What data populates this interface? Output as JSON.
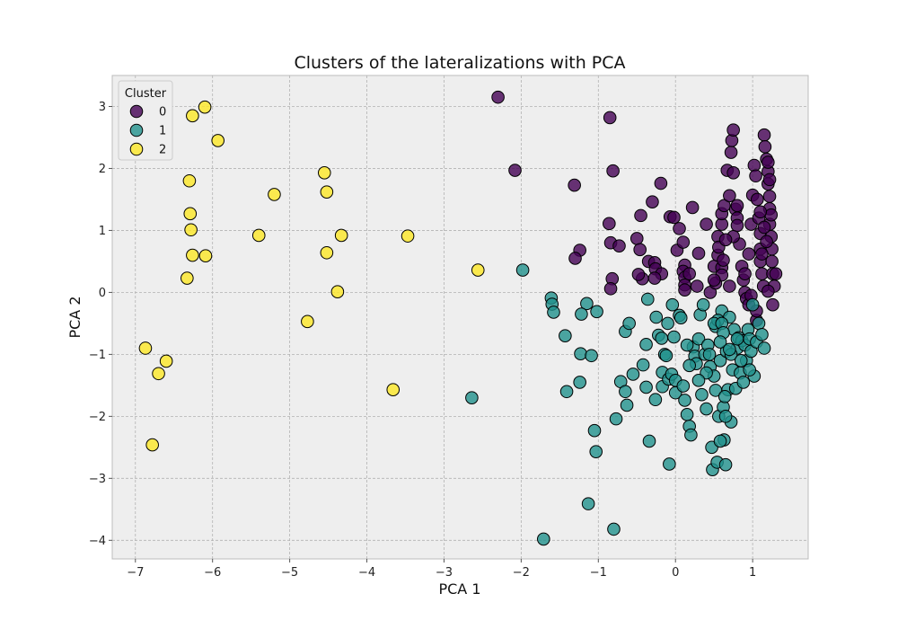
{
  "chart_data": {
    "type": "scatter",
    "title": "Clusters of the lateralizations with PCA",
    "xlabel": "PCA 1",
    "ylabel": "PCA 2",
    "xlim": [
      -7.3,
      1.72
    ],
    "ylim": [
      -4.3,
      3.5
    ],
    "xticks": [
      -7,
      -6,
      -5,
      -4,
      -3,
      -2,
      -1,
      0,
      1
    ],
    "yticks": [
      -4,
      -3,
      -2,
      -1,
      0,
      1,
      2,
      3
    ],
    "grid": true,
    "legend_title": "Cluster",
    "legend_position": "upper-left",
    "series": [
      {
        "name": "0",
        "color": "#440154",
        "points": [
          [
            -2.3,
            3.15
          ],
          [
            -0.85,
            2.82
          ],
          [
            -2.08,
            1.97
          ],
          [
            -0.81,
            1.96
          ],
          [
            -1.31,
            1.73
          ],
          [
            -0.19,
            1.76
          ],
          [
            -0.3,
            1.46
          ],
          [
            -0.45,
            1.24
          ],
          [
            -0.07,
            1.22
          ],
          [
            -0.02,
            1.21
          ],
          [
            0.05,
            1.03
          ],
          [
            0.22,
            1.37
          ],
          [
            0.4,
            1.1
          ],
          [
            -0.86,
            1.11
          ],
          [
            -0.84,
            0.8
          ],
          [
            -0.73,
            0.75
          ],
          [
            -0.5,
            0.87
          ],
          [
            -1.24,
            0.68
          ],
          [
            -1.3,
            0.55
          ],
          [
            -0.82,
            0.22
          ],
          [
            -0.84,
            0.06
          ],
          [
            -0.46,
            0.69
          ],
          [
            -0.35,
            0.5
          ],
          [
            -0.27,
            0.48
          ],
          [
            -0.26,
            0.38
          ],
          [
            -0.18,
            0.3
          ],
          [
            -0.43,
            0.22
          ],
          [
            -0.27,
            0.23
          ],
          [
            -0.48,
            0.29
          ],
          [
            0.02,
            0.68
          ],
          [
            0.1,
            0.81
          ],
          [
            0.12,
            0.44
          ],
          [
            0.1,
            0.34
          ],
          [
            0.12,
            0.24
          ],
          [
            0.12,
            0.12
          ],
          [
            0.12,
            0.04
          ],
          [
            0.18,
            0.3
          ],
          [
            0.3,
            0.63
          ],
          [
            0.28,
            0.1
          ],
          [
            0.45,
            0.0
          ],
          [
            0.5,
            0.42
          ],
          [
            0.52,
            0.15
          ],
          [
            0.55,
            0.6
          ],
          [
            0.55,
            0.9
          ],
          [
            0.56,
            0.73
          ],
          [
            0.6,
            0.4
          ],
          [
            0.62,
            0.52
          ],
          [
            0.6,
            0.28
          ],
          [
            0.6,
            1.1
          ],
          [
            0.6,
            1.27
          ],
          [
            0.63,
            1.4
          ],
          [
            0.67,
            1.97
          ],
          [
            0.7,
            1.56
          ],
          [
            0.72,
            2.26
          ],
          [
            0.73,
            2.45
          ],
          [
            0.75,
            2.62
          ],
          [
            0.75,
            1.93
          ],
          [
            0.78,
            1.34
          ],
          [
            0.8,
            1.4
          ],
          [
            0.8,
            1.2
          ],
          [
            0.8,
            1.08
          ],
          [
            0.83,
            0.78
          ],
          [
            0.86,
            0.42
          ],
          [
            0.88,
            0.2
          ],
          [
            0.9,
            0.0
          ],
          [
            0.92,
            -0.1
          ],
          [
            0.95,
            -0.2
          ],
          [
            0.95,
            0.62
          ],
          [
            0.98,
            1.1
          ],
          [
            1.0,
            1.57
          ],
          [
            1.02,
            2.05
          ],
          [
            1.04,
            1.88
          ],
          [
            1.06,
            1.5
          ],
          [
            1.08,
            1.2
          ],
          [
            1.1,
            0.95
          ],
          [
            1.1,
            0.7
          ],
          [
            1.1,
            0.5
          ],
          [
            1.12,
            0.3
          ],
          [
            1.14,
            0.1
          ],
          [
            1.15,
            2.54
          ],
          [
            1.16,
            2.35
          ],
          [
            1.18,
            2.15
          ],
          [
            1.2,
            1.95
          ],
          [
            1.2,
            1.75
          ],
          [
            1.22,
            1.55
          ],
          [
            1.22,
            1.35
          ],
          [
            1.22,
            1.1
          ],
          [
            1.24,
            0.9
          ],
          [
            1.25,
            0.7
          ],
          [
            1.25,
            0.5
          ],
          [
            1.26,
            0.3
          ],
          [
            1.26,
            -0.2
          ],
          [
            1.28,
            0.1
          ],
          [
            1.3,
            0.3
          ],
          [
            1.2,
            2.1
          ],
          [
            1.22,
            1.82
          ],
          [
            1.05,
            -0.45
          ],
          [
            1.05,
            -0.3
          ],
          [
            0.98,
            -0.05
          ],
          [
            0.9,
            0.3
          ],
          [
            0.7,
            0.1
          ],
          [
            0.75,
            0.9
          ],
          [
            0.65,
            0.85
          ],
          [
            0.5,
            0.2
          ],
          [
            1.15,
            1.05
          ],
          [
            1.18,
            0.82
          ],
          [
            1.12,
            0.62
          ],
          [
            1.24,
            1.25
          ],
          [
            1.2,
            0.02
          ],
          [
            1.1,
            1.3
          ]
        ]
      },
      {
        "name": "1",
        "color": "#21918c",
        "points": [
          [
            -1.98,
            0.36
          ],
          [
            -1.61,
            -0.09
          ],
          [
            -1.6,
            -0.19
          ],
          [
            -1.58,
            -0.32
          ],
          [
            -1.43,
            -0.7
          ],
          [
            -1.15,
            -0.18
          ],
          [
            -1.22,
            -0.35
          ],
          [
            -1.02,
            -0.31
          ],
          [
            -1.23,
            -0.99
          ],
          [
            -1.09,
            -1.02
          ],
          [
            -1.24,
            -1.45
          ],
          [
            -1.41,
            -1.6
          ],
          [
            -2.64,
            -1.7
          ],
          [
            -1.05,
            -2.23
          ],
          [
            -1.03,
            -2.57
          ],
          [
            -1.13,
            -3.41
          ],
          [
            -0.8,
            -3.82
          ],
          [
            -1.71,
            -3.98
          ],
          [
            -0.77,
            -2.04
          ],
          [
            -0.71,
            -1.44
          ],
          [
            -0.65,
            -1.6
          ],
          [
            -0.63,
            -1.82
          ],
          [
            -0.65,
            -0.63
          ],
          [
            -0.6,
            -0.5
          ],
          [
            -0.55,
            -1.32
          ],
          [
            -0.42,
            -1.17
          ],
          [
            -0.38,
            -0.84
          ],
          [
            -0.36,
            -0.11
          ],
          [
            -0.38,
            -1.53
          ],
          [
            -0.26,
            -1.73
          ],
          [
            -0.25,
            -0.4
          ],
          [
            -0.22,
            -0.69
          ],
          [
            -0.18,
            -0.74
          ],
          [
            -0.17,
            -1.29
          ],
          [
            -0.17,
            -1.52
          ],
          [
            -0.34,
            -2.4
          ],
          [
            -0.14,
            -1.0
          ],
          [
            -0.12,
            -1.02
          ],
          [
            -0.1,
            -0.5
          ],
          [
            -0.09,
            -1.4
          ],
          [
            -0.08,
            -2.77
          ],
          [
            -0.05,
            -1.32
          ],
          [
            -0.04,
            -0.2
          ],
          [
            -0.02,
            -0.72
          ],
          [
            0.0,
            -1.42
          ],
          [
            0.0,
            -1.62
          ],
          [
            0.05,
            -0.37
          ],
          [
            0.07,
            -0.41
          ],
          [
            0.1,
            -1.51
          ],
          [
            0.12,
            -1.74
          ],
          [
            0.15,
            -1.97
          ],
          [
            0.18,
            -2.16
          ],
          [
            0.2,
            -2.3
          ],
          [
            0.23,
            -0.88
          ],
          [
            0.25,
            -1.03
          ],
          [
            0.27,
            -1.15
          ],
          [
            0.3,
            -0.75
          ],
          [
            0.32,
            -0.36
          ],
          [
            0.34,
            -1.65
          ],
          [
            0.36,
            -0.2
          ],
          [
            0.38,
            -1.0
          ],
          [
            0.4,
            -1.88
          ],
          [
            0.42,
            -0.85
          ],
          [
            0.45,
            -1.2
          ],
          [
            0.47,
            -2.5
          ],
          [
            0.48,
            -2.86
          ],
          [
            0.5,
            -1.35
          ],
          [
            0.52,
            -0.55
          ],
          [
            0.54,
            -2.74
          ],
          [
            0.56,
            -2.0
          ],
          [
            0.58,
            -1.1
          ],
          [
            0.6,
            -0.3
          ],
          [
            0.62,
            -1.85
          ],
          [
            0.63,
            -2.38
          ],
          [
            0.65,
            -2.78
          ],
          [
            0.66,
            -0.95
          ],
          [
            0.68,
            -1.57
          ],
          [
            0.7,
            -0.4
          ],
          [
            0.72,
            -2.09
          ],
          [
            0.74,
            -1.25
          ],
          [
            0.76,
            -0.6
          ],
          [
            0.78,
            -1.55
          ],
          [
            0.8,
            -0.9
          ],
          [
            0.82,
            -0.73
          ],
          [
            0.84,
            -1.3
          ],
          [
            0.86,
            -0.78
          ],
          [
            0.88,
            -1.45
          ],
          [
            0.9,
            -0.85
          ],
          [
            0.92,
            -1.1
          ],
          [
            0.94,
            -0.6
          ],
          [
            0.96,
            -0.75
          ],
          [
            0.98,
            -0.95
          ],
          [
            1.0,
            -0.2
          ],
          [
            1.02,
            -1.35
          ],
          [
            1.05,
            -0.8
          ],
          [
            1.08,
            -0.5
          ],
          [
            1.12,
            -0.68
          ],
          [
            1.15,
            -0.9
          ],
          [
            0.55,
            -0.45
          ],
          [
            0.5,
            -0.5
          ],
          [
            0.6,
            -0.5
          ],
          [
            0.62,
            -0.65
          ],
          [
            0.58,
            -0.8
          ],
          [
            0.44,
            -1.0
          ],
          [
            0.4,
            -1.3
          ],
          [
            0.52,
            -1.58
          ],
          [
            0.64,
            -1.68
          ],
          [
            0.3,
            -1.42
          ],
          [
            0.18,
            -1.18
          ],
          [
            0.15,
            -0.85
          ],
          [
            0.72,
            -1.0
          ],
          [
            0.85,
            -1.1
          ],
          [
            0.96,
            -1.25
          ],
          [
            0.58,
            -2.4
          ],
          [
            0.65,
            -2.0
          ],
          [
            0.7,
            -0.92
          ],
          [
            0.8,
            -0.75
          ]
        ]
      },
      {
        "name": "2",
        "color": "#fde725",
        "points": [
          [
            -6.1,
            2.99
          ],
          [
            -6.26,
            2.85
          ],
          [
            -5.93,
            2.45
          ],
          [
            -6.3,
            1.8
          ],
          [
            -6.29,
            1.27
          ],
          [
            -6.28,
            1.01
          ],
          [
            -6.26,
            0.6
          ],
          [
            -6.09,
            0.59
          ],
          [
            -6.33,
            0.23
          ],
          [
            -5.4,
            0.92
          ],
          [
            -5.2,
            1.58
          ],
          [
            -4.55,
            1.93
          ],
          [
            -4.52,
            1.62
          ],
          [
            -4.52,
            0.64
          ],
          [
            -4.33,
            0.92
          ],
          [
            -4.38,
            0.01
          ],
          [
            -4.77,
            -0.47
          ],
          [
            -3.47,
            0.91
          ],
          [
            -2.56,
            0.36
          ],
          [
            -3.66,
            -1.57
          ],
          [
            -6.87,
            -0.9
          ],
          [
            -6.6,
            -1.11
          ],
          [
            -6.7,
            -1.31
          ],
          [
            -6.78,
            -2.46
          ]
        ]
      }
    ]
  }
}
